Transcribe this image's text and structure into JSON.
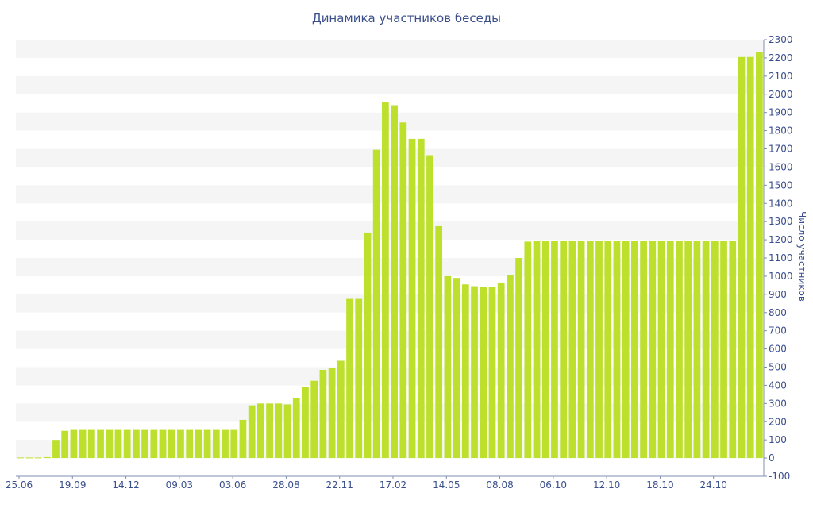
{
  "chart_data": {
    "type": "bar",
    "title": "Динамика участников беседы",
    "ylabel": "Число участников",
    "xlabel": "",
    "ylim": [
      -100,
      2300
    ],
    "y_ticks": [
      -100,
      0,
      100,
      200,
      300,
      400,
      500,
      600,
      700,
      800,
      900,
      1000,
      1100,
      1200,
      1300,
      1400,
      1500,
      1600,
      1700,
      1800,
      1900,
      2000,
      2100,
      2200,
      2300
    ],
    "x_tick_labels": [
      {
        "index": 0,
        "label": "25.06"
      },
      {
        "index": 6,
        "label": "19.09"
      },
      {
        "index": 12,
        "label": "14.12"
      },
      {
        "index": 18,
        "label": "09.03"
      },
      {
        "index": 24,
        "label": "03.06"
      },
      {
        "index": 30,
        "label": "28.08"
      },
      {
        "index": 36,
        "label": "22.11"
      },
      {
        "index": 42,
        "label": "17.02"
      },
      {
        "index": 48,
        "label": "14.05"
      },
      {
        "index": 54,
        "label": "08.08"
      },
      {
        "index": 60,
        "label": "06.10"
      },
      {
        "index": 66,
        "label": "12.10"
      },
      {
        "index": 72,
        "label": "18.10"
      },
      {
        "index": 78,
        "label": "24.10"
      }
    ],
    "series": [
      {
        "color": "#bde02d",
        "values": [
          3,
          3,
          3,
          5,
          100,
          150,
          155,
          155,
          155,
          155,
          155,
          155,
          155,
          155,
          155,
          155,
          155,
          155,
          155,
          155,
          155,
          155,
          155,
          155,
          155,
          210,
          290,
          300,
          300,
          300,
          295,
          330,
          390,
          425,
          485,
          495,
          535,
          875,
          875,
          1240,
          1695,
          1955,
          1940,
          1845,
          1755,
          1755,
          1665,
          1275,
          1000,
          990,
          955,
          945,
          940,
          940,
          965,
          1005,
          1100,
          1190,
          1195,
          1195,
          1195,
          1195,
          1195,
          1195,
          1195,
          1195,
          1195,
          1195,
          1195,
          1195,
          1195,
          1195,
          1195,
          1195,
          1195,
          1195,
          1195,
          1195,
          1195,
          1195,
          1195,
          2205,
          2205,
          2230
        ]
      }
    ],
    "grid": true,
    "y_axis_position": "right"
  }
}
